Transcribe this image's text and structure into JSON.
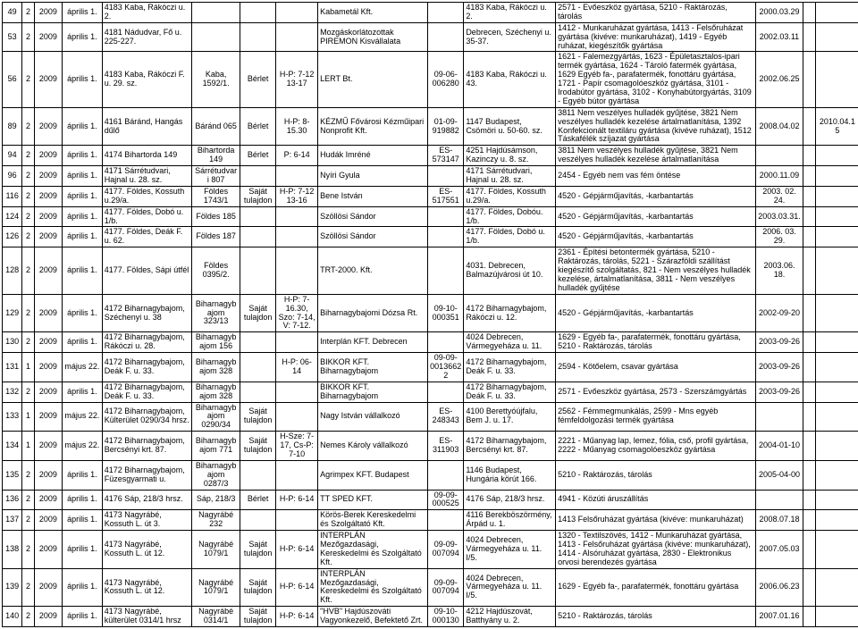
{
  "col_widths": [
    "20px",
    "12px",
    "28px",
    "40px",
    "90px",
    "48px",
    "36px",
    "42px",
    "110px",
    "36px",
    "92px",
    "200px",
    "48px",
    "12px",
    "44px"
  ],
  "rows": [
    {
      "cells": [
        "49",
        "2",
        "2009",
        "április 1.",
        "4183 Kaba, Rákóczi u. 2.",
        "",
        "",
        "",
        "Kabametál Kft.",
        "",
        "4183 Kaba, Rákóczi u. 2.",
        "2571 - Evőeszköz gyártása, 5210 - Raktározás, tárolás",
        "2000.03.29",
        "",
        ""
      ]
    },
    {
      "cells": [
        "53",
        "2",
        "2009",
        "április 1.",
        "4181 Nádudvar, Fő u. 225-227.",
        "",
        "",
        "",
        "Mozgáskorlátozottak PIREMON Kisvállalata",
        "",
        "Debrecen, Széchenyi u. 35-37.",
        "1412 - Munkaruházat gyártása, 1413 - Felsőruházat gyártása (kivéve: munkaruházat), 1419 - Egyéb ruházat, kiegészítők gyártása",
        "2002.03.11",
        "",
        ""
      ]
    },
    {
      "cells": [
        "56",
        "2",
        "2009",
        "április 1.",
        "4183 Kaba, Rákóczi F. u. 29. sz.",
        "Kaba, 1592/1.",
        "Bérlet",
        "H-P: 7-12 13-17",
        "LERT Bt.",
        "09-06-006280",
        "4183 Kaba, Rákóczi u. 43.",
        "1621 - Falemezgyártás, 1623 - Épületasztalos-ipari termék gyártása, 1624 - Tároló fatermék gyártása, 1629 Egyéb fa-, parafatermék, fonottáru gyártása, 1721 - Papír csomagolóeszköz gyártása, 3101 - Irodabútor gyártása, 3102 - Konyhabútorgyártás, 3109 - Egyéb bútor gyártása",
        "2002.06.25",
        "",
        ""
      ]
    },
    {
      "cells": [
        "89",
        "2",
        "2009",
        "április 1.",
        "4161 Báránd, Hangás dűlő",
        "Báránd 065",
        "Bérlet",
        "H-P: 8-15.30",
        "KÉZMŰ Fővárosi Kézműipari Nonprofit Kft.",
        "01-09-919882",
        "1147 Budapest, Csömöri u. 50-60. sz.",
        "3811 Nem veszélyes hulladék gyűjtése, 3821 Nem veszélyes hulladék kezelése ártalmatlanítása, 1392 Konfekcionált textiláru gyártása (kivéve ruházat), 1512 Táskafélék szíjazat gyártása",
        "2008.04.02",
        "",
        "2010.04.15"
      ]
    },
    {
      "cells": [
        "94",
        "2",
        "2009",
        "április 1.",
        "4174 Bihartorda 149",
        "Bihartorda 149",
        "Bérlet",
        "P: 6-14",
        "Hudák Imréné",
        "ES-573147",
        "4251 Hajdúsámson, Kazinczy u. 8. sz.",
        "3811 Nem veszélyes hulladék gyűjtése, 3821 Nem veszélyes hulladék kezelése ártalmatlanítása",
        "",
        "",
        ""
      ]
    },
    {
      "cells": [
        "96",
        "2",
        "2009",
        "április 1.",
        "4171 Sárrétudvari, Hajnal u. 28. sz.",
        "Sárrétudvari 807",
        "",
        "",
        "Nyíri Gyula",
        "",
        "4171 Sárrétudvari, Hajnal u. 28. sz.",
        "2454 - Egyéb nem vas fém öntése",
        "2000.11.09",
        "",
        ""
      ]
    },
    {
      "cells": [
        "116",
        "2",
        "2009",
        "április 1.",
        "4177. Földes, Kossuth u.29/a.",
        "Földes 1743/1",
        "Saját tulajdon",
        "H-P: 7-12 13-16",
        "Bene István",
        "ES-517551",
        "4177. Földes, Kossuth u.29/a.",
        "4520 - Gépjárműjavítás, -karbantartás",
        "2003. 02. 24.",
        "",
        ""
      ]
    },
    {
      "cells": [
        "124",
        "2",
        "2009",
        "április 1.",
        "4177. Földes, Dobó u. 1/b.",
        "Földes 185",
        "",
        "",
        "Szöllösi Sándor",
        "",
        "4177. Földes, Dobóu. 1/b.",
        "4520 - Gépjárműjavítás, -karbantartás",
        "2003.03.31.",
        "",
        ""
      ]
    },
    {
      "cells": [
        "126",
        "2",
        "2009",
        "április 1.",
        "4177. Földes, Deák F. u. 62.",
        "Földes 187",
        "",
        "",
        "Szöllösi Sándor",
        "",
        "4177. Földes, Dobó u. 1/b.",
        "4520 - Gépjárműjavítás, -karbantartás",
        "2006. 03. 29.",
        "",
        ""
      ]
    },
    {
      "cells": [
        "128",
        "2",
        "2009",
        "április 1.",
        "4177. Földes, Sápi útfél",
        "Földes 0395/2.",
        "",
        "",
        "TRT-2000. Kft.",
        "",
        "4031. Debrecen, Balmazújvárosi út 10.",
        "2361 - Építési betontermék gyártása, 5210 - Raktározás, tárolás, 5221 - Szárazföldi szállítást kiegészítő szolgáltatás, 821 - Nem veszélyes hulladék kezelése, ártalmatlanítása, 3811 - Nem veszélyes hulladék gyűjtése",
        "2003.06. 18.",
        "",
        ""
      ]
    },
    {
      "cells": [
        "129",
        "2",
        "2009",
        "április 1.",
        "4172 Biharnagybajom, Széchenyi u. 38",
        "Biharnagyb ajom 323/13",
        "Saját tulajdon",
        "H-P: 7-16.30, Szo: 7-14, V: 7-12.",
        "Biharnagybajomi Dózsa Rt.",
        "09-10-000351",
        "4172 Biharnagybajom, Rákóczi u. 12.",
        "4520 - Gépjárműjavítás, -karbantartás",
        "2002-09-20",
        "",
        ""
      ]
    },
    {
      "cells": [
        "130",
        "2",
        "2009",
        "április 1.",
        "4172 Biharnagybajom, Rákóczi u. 28.",
        "Biharnagyb ajom 156",
        "",
        "",
        "Interplán KFT. Debrecen",
        "",
        "4024 Debrecen, Vármegyeháza u. 11.",
        "1629 - Egyéb fa-, parafatermék, fonottáru gyártása, 5210 - Raktározás, tárolás",
        "2003-09-26",
        "",
        ""
      ]
    },
    {
      "cells": [
        "131",
        "1",
        "2009",
        "május 22.",
        "4172 Biharnagybajom, Deák F. u. 33.",
        "Biharnagyb ajom 328",
        "",
        "H-P: 06-14",
        "BIKKOR KFT. Biharnagybajom",
        "09-09-00136622",
        "4172 Biharnagybajom, Deák F. u. 33.",
        "2594 - Kötőelem, csavar gyártása",
        "2003-09-26",
        "",
        ""
      ]
    },
    {
      "cells": [
        "132",
        "2",
        "2009",
        "április 1.",
        "4172 Biharnagybajom, Deák F. u. 33.",
        "Biharnagyb ajom 328",
        "",
        "",
        "BIKKOR KFT. Biharnagybajom",
        "",
        "4172 Biharnagybajom, Deák F. u. 33.",
        "2571 - Evőeszköz gyártása, 2573 - Szerszámgyártás",
        "2003-09-26",
        "",
        ""
      ]
    },
    {
      "cells": [
        "133",
        "1",
        "2009",
        "május 22.",
        "4172 Biharnagybajom, Külterület 0290/34 hrsz.",
        "Biharnagyb ajom 0290/34",
        "Saját tulajdon",
        "",
        "Nagy István vállalkozó",
        "ES-248343",
        "4100 Berettyóújfalu, Bem J. u. 17.",
        "2562 - Fémmegmunkálás, 2599 - Mns egyéb fémfeldolgozási termék gyártása",
        "",
        "",
        ""
      ]
    },
    {
      "cells": [
        "134",
        "1",
        "2009",
        "május 22.",
        "4172 Biharnagybajom, Bercsényi krt. 87.",
        "Biharnagyb ajom 771",
        "Saját tulajdon",
        "H-Sze: 7-17, Cs-P: 7-10",
        "Nemes Károly vállalkozó",
        "ES-311903",
        "4172 Biharnagybajom, Bercsényi krt. 87.",
        "2221 - Műanyag lap, lemez, fólia, cső, profil gyártása, 2222 - Műanyag csomagolóeszköz gyártása",
        "2004-01-10",
        "",
        ""
      ]
    },
    {
      "cells": [
        "135",
        "2",
        "2009",
        "április 1.",
        "4172 Biharnagybajom, Füzesgyarmati u.",
        "Biharnagyb ajom 0287/3",
        "",
        "",
        "Agrimpex KFT. Budapest",
        "",
        "1146 Budapest, Hungária körút 166.",
        "5210 - Raktározás, tárolás",
        "2005-04-00",
        "",
        ""
      ]
    },
    {
      "cells": [
        "136",
        "2",
        "2009",
        "április 1.",
        "4176 Sáp, 218/3 hrsz.",
        "Sáp, 218/3",
        "Bérlet",
        "H-P: 6-14",
        "TT SPED KFT.",
        "09-09-000525",
        "4176 Sáp, 218/3 hrsz.",
        "4941 - Közúti áruszállítás",
        "",
        "",
        ""
      ]
    },
    {
      "cells": [
        "137",
        "2",
        "2009",
        "április 1.",
        "4173 Nagyrábé, Kossuth L. út 3.",
        "Nagyrábé 232",
        "",
        "",
        "Körös-Berek Kereskedelmi és Szolgáltató Kft.",
        "",
        "4116 Berekböszörmény, Árpád u. 1.",
        "1413 Felsőruházat gyártása (kivéve: munkaruházat)",
        "2008.07.18",
        "",
        ""
      ]
    },
    {
      "cells": [
        "138",
        "2",
        "2009",
        "április 1.",
        "4173 Nagyrábé, Kossuth L. út 12.",
        "Nagyrábé 1079/1",
        "Saját tulajdon",
        "H-P: 6-14",
        "INTERPLÁN Mezőgazdasági, Kereskedelmi és Szolgáltató Kft.",
        "09-09-007094",
        "4024 Debrecen, Vármegyeháza u. 11. I/5.",
        "1320 - Textilszövés, 1412 - Munkaruházat gyártása, 1413 - Felsőruházat gyártása (kivéve: munkaruházat), 1414 - Alsóruházat gyártása, 2830 - Elektronikus orvosi berendezés gyártása",
        "2007.05.03",
        "",
        ""
      ]
    },
    {
      "cells": [
        "139",
        "2",
        "2009",
        "április 1.",
        "4173 Nagyrábé, Kossuth L. út 12.",
        "Nagyrábé 1079/1",
        "Saját tulajdon",
        "H-P: 6-14",
        "INTERPLÁN Mezőgazdasági, Kereskedelmi és Szolgáltató Kft.",
        "09-09-007094",
        "4024 Debrecen, Vármegyeháza u. 11. I/5.",
        "1629 - Egyéb fa-, parafatermék, fonottáru gyártása",
        "2006.06.23",
        "",
        ""
      ]
    },
    {
      "cells": [
        "140",
        "2",
        "2009",
        "április 1.",
        "4173 Nagyrábé, külterület 0314/1 hrsz",
        "Nagyrábé 0314/1",
        "Saját tulajdon",
        "H-P: 6-14",
        "\"HVB\" Hajdúszováti Vagyonkezelő, Befektető Zrt.",
        "09-10-000130",
        "4212 Hajdúszovát, Batthyány u. 2.",
        "5210 - Raktározás, tárolás",
        "2007.01.16",
        "",
        ""
      ]
    }
  ]
}
